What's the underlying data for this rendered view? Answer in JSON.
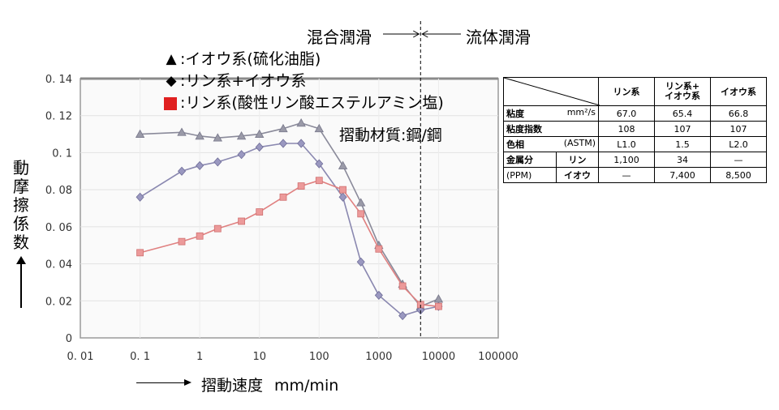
{
  "chart_data": {
    "type": "line",
    "x_scale": "log",
    "xlim": [
      0.01,
      100000
    ],
    "ylim": [
      0,
      0.14
    ],
    "x_ticks": [
      "0. 01",
      "0. 1",
      "1",
      "10",
      "100",
      "1000",
      "10000",
      "100000"
    ],
    "y_ticks": [
      "0",
      "0. 02",
      "0. 04",
      "0. 06",
      "0. 08",
      "0. 1",
      "0. 12",
      "0. 14"
    ],
    "xlabel": "摺動速度",
    "xlabel_unit": "mm/min",
    "ylabel": "動摩擦係数",
    "annotation": "摺動材質:鋼/鋼",
    "regime_left": "混合潤滑",
    "regime_right": "流体潤滑",
    "regime_boundary_x": 5000,
    "series": [
      {
        "name": ":イオウ系(硫化油脂)",
        "marker": "triangle",
        "marker_symbol": "▲",
        "color": "#8a8a9a",
        "x": [
          0.1,
          0.5,
          1,
          2,
          5,
          10,
          25,
          50,
          100,
          250,
          500,
          1000,
          2500,
          5000,
          10000
        ],
        "y": [
          0.11,
          0.111,
          0.109,
          0.108,
          0.109,
          0.11,
          0.113,
          0.116,
          0.113,
          0.093,
          0.073,
          0.05,
          0.029,
          0.017,
          0.021
        ]
      },
      {
        "name": ":リン系+イオウ系",
        "marker": "diamond",
        "marker_symbol": "◆",
        "color": "#8a88b0",
        "x": [
          0.1,
          0.5,
          1,
          2,
          5,
          10,
          25,
          50,
          100,
          250,
          500,
          1000,
          2500,
          5000,
          10000
        ],
        "y": [
          0.076,
          0.09,
          0.093,
          0.095,
          0.099,
          0.103,
          0.105,
          0.105,
          0.094,
          0.076,
          0.041,
          0.023,
          0.012,
          0.015,
          0.017
        ]
      },
      {
        "name": ":リン系(酸性リン酸エステルアミン塩)",
        "marker": "square",
        "marker_symbol": "■",
        "color": "#e08080",
        "legend_color": "#e02020",
        "x": [
          0.1,
          0.5,
          1,
          2,
          5,
          10,
          25,
          50,
          100,
          250,
          500,
          1000,
          2500,
          5000,
          10000
        ],
        "y": [
          0.046,
          0.052,
          0.055,
          0.059,
          0.063,
          0.068,
          0.076,
          0.082,
          0.085,
          0.08,
          0.067,
          0.048,
          0.028,
          0.018,
          0.017
        ]
      }
    ]
  },
  "table": {
    "headers": [
      "",
      "リン系",
      "リン系+\nイオウ系",
      "イオウ系"
    ],
    "rows": [
      {
        "label": "粘度",
        "unit": "mm²/s",
        "values": [
          "67.0",
          "65.4",
          "66.8"
        ]
      },
      {
        "label": "粘度指数",
        "unit": "",
        "values": [
          "108",
          "107",
          "107"
        ]
      },
      {
        "label": "色相",
        "unit": "(ASTM)",
        "values": [
          "L1.0",
          "1.5",
          "L2.0"
        ]
      },
      {
        "label": "金属分",
        "unit": "リン",
        "values": [
          "1,100",
          "34",
          "—"
        ]
      },
      {
        "label": "(PPM)",
        "unit": "イオウ",
        "values": [
          "—",
          "7,400",
          "8,500"
        ]
      }
    ]
  }
}
